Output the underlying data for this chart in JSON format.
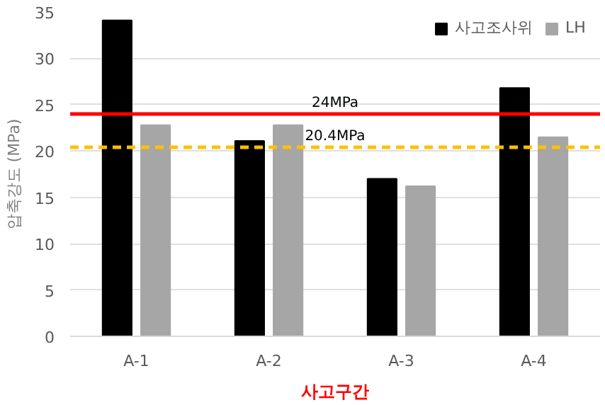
{
  "chart_data": {
    "type": "bar",
    "categories": [
      "A-1",
      "A-2",
      "A-3",
      "A-4"
    ],
    "series": [
      {
        "name": "사고조사위",
        "color": "#000000",
        "values": [
          34.1,
          21.1,
          17.0,
          26.8
        ]
      },
      {
        "name": "LH",
        "color": "#a6a6a6",
        "values": [
          22.8,
          22.8,
          16.2,
          21.5
        ]
      }
    ],
    "xlabel": "사고구간",
    "ylabel": "압축강도 (MPa)",
    "ylim": [
      0,
      35
    ],
    "yticks": [
      0,
      5,
      10,
      15,
      20,
      25,
      30,
      35
    ],
    "grid": "y",
    "legend": "top right",
    "ref_lines": [
      {
        "axis": "y",
        "value": 24,
        "label": "24MPa",
        "color": "#ff0000",
        "line_style": "solid"
      },
      {
        "axis": "y",
        "value": 20.4,
        "label": "20.4MPa",
        "color": "#ffc000",
        "line_style": "dashed"
      }
    ]
  }
}
